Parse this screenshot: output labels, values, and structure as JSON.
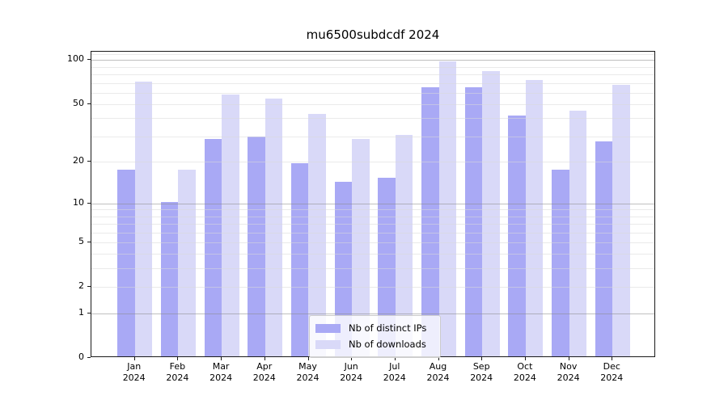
{
  "title": "mu6500subdcdf 2024",
  "chart_data": {
    "type": "bar",
    "title": "mu6500subdcdf 2024",
    "x_ticks": [
      {
        "month": "Jan",
        "year": "2024"
      },
      {
        "month": "Feb",
        "year": "2024"
      },
      {
        "month": "Mar",
        "year": "2024"
      },
      {
        "month": "Apr",
        "year": "2024"
      },
      {
        "month": "May",
        "year": "2024"
      },
      {
        "month": "Jun",
        "year": "2024"
      },
      {
        "month": "Jul",
        "year": "2024"
      },
      {
        "month": "Aug",
        "year": "2024"
      },
      {
        "month": "Sep",
        "year": "2024"
      },
      {
        "month": "Oct",
        "year": "2024"
      },
      {
        "month": "Nov",
        "year": "2024"
      },
      {
        "month": "Dec",
        "year": "2024"
      }
    ],
    "series": [
      {
        "name": "Nb of distinct IPs",
        "color": "#a9a9f5",
        "values": [
          17,
          10,
          28,
          29,
          19,
          14,
          15,
          64,
          64,
          41,
          17,
          27
        ]
      },
      {
        "name": "Nb of downloads",
        "color": "#d9d9f8",
        "values": [
          70,
          17,
          57,
          53,
          42,
          28,
          30,
          95,
          82,
          71,
          44,
          66
        ]
      }
    ],
    "y_scale": "log1p",
    "y_axis_range": [
      0,
      114
    ],
    "y_major_ticks": [
      0,
      1,
      2,
      5,
      10,
      20,
      50,
      100
    ],
    "y_decade_gridlines": [
      1,
      10,
      100
    ],
    "y_minor_gridlines": [
      3,
      4,
      6,
      7,
      8,
      9,
      30,
      40,
      60,
      70,
      80,
      90,
      110
    ],
    "grid": true,
    "legend": {
      "position": "lower center",
      "items": [
        "Nb of distinct IPs",
        "Nb of downloads"
      ]
    },
    "colors": {
      "axis": "#1a1a1a",
      "major_grid": "#8a8a8a",
      "minor_grid": "#d9d9d9",
      "background": "#ffffff"
    }
  }
}
